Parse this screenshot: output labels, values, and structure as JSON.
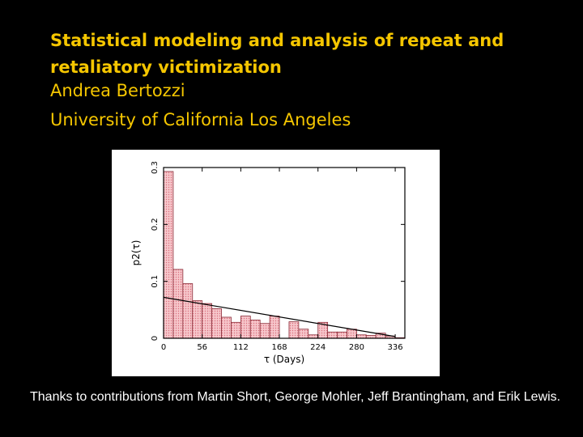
{
  "slide": {
    "title_line1": "Statistical modeling and analysis of repeat and",
    "title_line2": "retaliatory victimization",
    "author": "Andrea Bertozzi",
    "affiliation": "University of California Los Angeles",
    "thanks": "Thanks to contributions from Martin Short, George Mohler, Jeff Brantingham, and Erik Lewis.",
    "title_color": "#f5c600",
    "background_color": "#000000"
  },
  "chart_data": {
    "type": "bar",
    "xlabel": "τ (Days)",
    "ylabel": "p2(τ)",
    "xlim": [
      0,
      350
    ],
    "ylim": [
      0,
      0.3
    ],
    "x_ticks": [
      0,
      56,
      112,
      168,
      224,
      280,
      336
    ],
    "y_ticks": [
      0,
      0.1,
      0.2,
      0.3
    ],
    "y_tick_labels": [
      "0",
      "0.1",
      "0.2",
      "0.3"
    ],
    "bin_width": 14,
    "bin_starts": [
      0,
      14,
      28,
      42,
      56,
      70,
      84,
      98,
      112,
      126,
      140,
      154,
      168,
      182,
      196,
      210,
      224,
      238,
      252,
      266,
      280,
      294,
      308,
      322,
      336
    ],
    "values": [
      0.293,
      0.121,
      0.096,
      0.066,
      0.061,
      0.052,
      0.037,
      0.028,
      0.039,
      0.032,
      0.026,
      0.039,
      0.0,
      0.029,
      0.016,
      0.006,
      0.028,
      0.011,
      0.011,
      0.016,
      0.006,
      0.005,
      0.009,
      0.004,
      0.001
    ],
    "bar_color": "#f4b8bf",
    "fit_line": {
      "x": [
        0,
        336
      ],
      "y": [
        0.072,
        0.003
      ]
    },
    "grid": false
  }
}
